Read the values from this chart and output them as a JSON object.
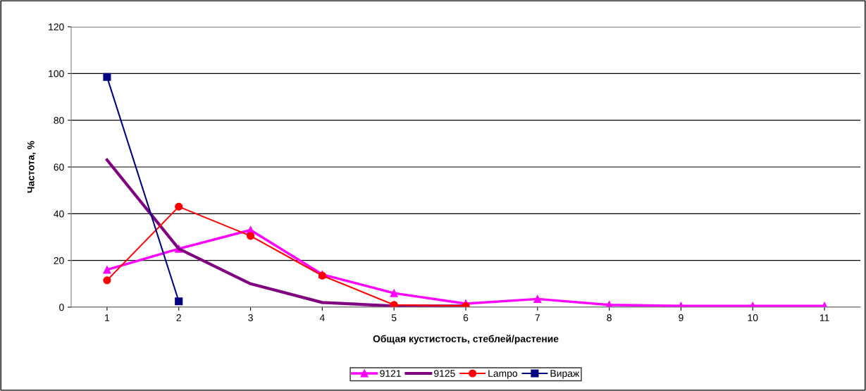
{
  "chart_data": {
    "type": "line",
    "xlabel": "Общая кустистость, стеблей/растение",
    "ylabel": "Частота, %",
    "categories": [
      "1",
      "2",
      "3",
      "4",
      "5",
      "6",
      "7",
      "8",
      "9",
      "10",
      "11"
    ],
    "ylim": [
      0,
      120
    ],
    "yticks": [
      0,
      20,
      40,
      60,
      80,
      100,
      120
    ],
    "grid": "y",
    "legend": "bottom",
    "series": [
      {
        "name": "9121",
        "color": "#ff00ff",
        "marker": "triangle",
        "values": [
          16,
          25,
          33,
          14,
          6,
          1.5,
          3.5,
          1,
          0.5,
          0.5,
          0.5
        ]
      },
      {
        "name": "9125",
        "color": "#800080",
        "marker": "none",
        "values": [
          63,
          25,
          10,
          2,
          0.5,
          0.5,
          null,
          null,
          null,
          null,
          null
        ]
      },
      {
        "name": "Lampo",
        "color": "#ff0000",
        "marker": "circle",
        "values": [
          11.5,
          43,
          30.5,
          13.5,
          1,
          0.5,
          null,
          null,
          null,
          null,
          null
        ]
      },
      {
        "name": "Вираж",
        "color": "#000080",
        "marker": "square",
        "values": [
          98.5,
          2.5,
          null,
          null,
          null,
          null,
          null,
          null,
          null,
          null,
          null
        ]
      }
    ]
  }
}
